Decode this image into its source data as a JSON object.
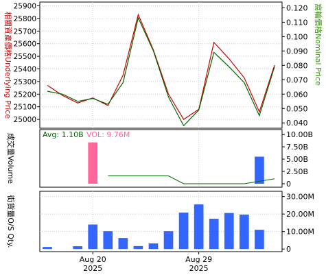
{
  "chart_data": [
    {
      "panel": "price",
      "type": "line",
      "x": [
        "2025-08-15",
        "2025-08-18",
        "2025-08-19",
        "2025-08-20",
        "2025-08-21",
        "2025-08-22",
        "2025-08-25",
        "2025-08-26",
        "2025-08-27",
        "2025-08-28",
        "2025-08-29",
        "2025-09-01",
        "2025-09-02",
        "2025-09-03",
        "2025-09-04",
        "2025-09-05"
      ],
      "left_axis": {
        "label": "相關資產價格Underlying Price",
        "ylim": [
          24930,
          25930
        ],
        "ticks": [
          25000,
          25100,
          25200,
          25300,
          25400,
          25500,
          25600,
          25700,
          25800,
          25900
        ],
        "color": "#cc0000"
      },
      "right_axis": {
        "label": "窩輪價格Nominal Price",
        "ylim": [
          0.0363,
          0.124
        ],
        "ticks": [
          "0.040",
          "0.050",
          "0.060",
          "0.070",
          "0.080",
          "0.090",
          "0.100",
          "0.110",
          "0.120"
        ],
        "color": "#339900"
      },
      "series": [
        {
          "axis": "left",
          "color": "#cc0000",
          "values": [
            25270,
            25190,
            25130,
            25170,
            25110,
            25350,
            25830,
            25550,
            25200,
            25000,
            25080,
            25610,
            25480,
            25330,
            25060,
            25430
          ]
        },
        {
          "axis": "right",
          "color": "#006600",
          "values": [
            0.062,
            0.06,
            0.055,
            0.057,
            0.053,
            0.068,
            0.113,
            0.09,
            0.058,
            0.038,
            0.049,
            0.089,
            0.079,
            0.068,
            0.045,
            0.079
          ]
        }
      ],
      "grid": true
    },
    {
      "panel": "volume",
      "type": "bar",
      "label": "成交量Volume",
      "avg_text": "Avg: 1.10B",
      "vol_text": "VOL: 9.76M",
      "ylim": [
        -700000000,
        11000000000
      ],
      "ticks": [
        0,
        2500000000,
        5000000000,
        7500000000,
        10000000000
      ],
      "tick_labels": [
        "0",
        "2.50B",
        "5.00B",
        "7.50B",
        "10.00B"
      ],
      "bars": [
        0,
        0,
        0,
        8400000000,
        0,
        0,
        0,
        0,
        0,
        0,
        0,
        0,
        0,
        0,
        5500000000,
        0
      ],
      "bar_colors": [
        "#ff6699",
        "#ff6699",
        "#ff6699",
        "#ff6699",
        "#ff6699",
        "#ff6699",
        "#ff6699",
        "#ff6699",
        "#ff6699",
        "#ff6699",
        "#ff6699",
        "#ff6699",
        "#ff6699",
        "#ff6699",
        "#3366ff",
        "#3366ff"
      ],
      "avg_line": [
        null,
        null,
        null,
        null,
        1600000000,
        1600000000,
        1600000000,
        1600000000,
        1600000000,
        0,
        0,
        0,
        0,
        0,
        500000000,
        1000000000
      ],
      "avg_line_color": "#006600"
    },
    {
      "panel": "outstanding",
      "type": "bar",
      "label": "街貨量O/S Qty.",
      "ylim": [
        -1500000,
        33000000
      ],
      "ticks": [
        0,
        10000000,
        20000000,
        30000000
      ],
      "tick_labels": [
        "0",
        "10.00M",
        "20.00M",
        "30.00M"
      ],
      "bars": [
        1200000,
        0,
        1600000,
        14000000,
        10200000,
        6300000,
        1700000,
        3200000,
        10200000,
        20800000,
        25500000,
        17300000,
        20600000,
        19700000,
        11000000,
        0
      ],
      "bar_color": "#3366ff"
    }
  ],
  "x_axis": {
    "labels": [
      {
        "index": 3,
        "line1": "Aug 20",
        "line2": "2025"
      },
      {
        "index": 10,
        "line1": "Aug 29",
        "line2": "2025"
      }
    ]
  },
  "colors": {
    "pink_bar": "#ff6699",
    "blue_bar": "#3366ff",
    "grid": "#cccccc",
    "price_line": "#cc0000",
    "warrant_line": "#006600",
    "left_label": "#cc0000",
    "right_label": "#339900",
    "avg_text": "#006600",
    "vol_text": "#ff6699"
  }
}
